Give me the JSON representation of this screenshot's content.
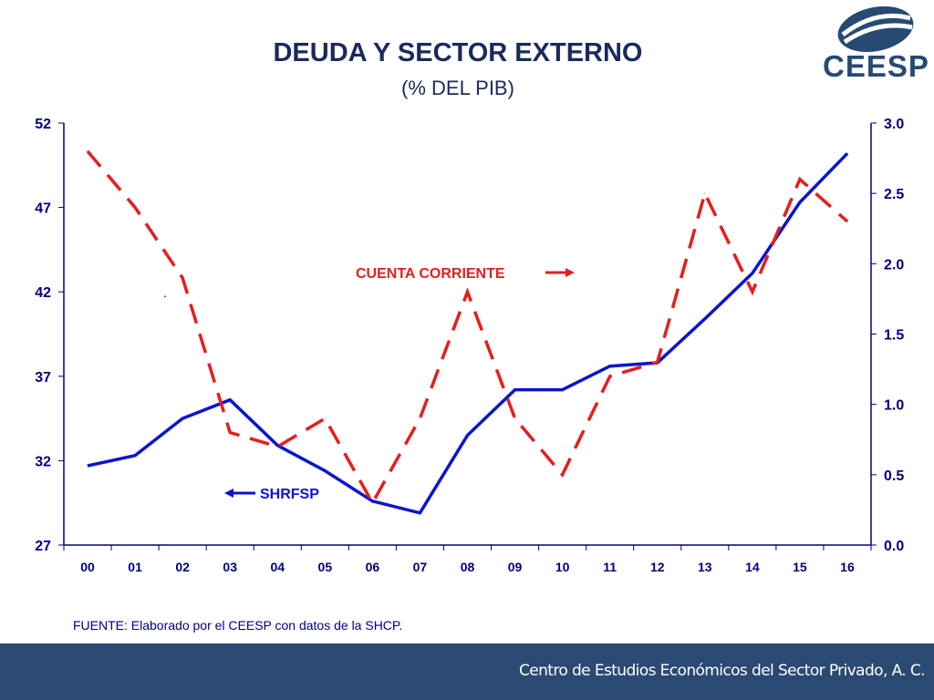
{
  "header": {
    "title": "DEUDA Y SECTOR EXTERNO",
    "subtitle": "(% DEL PIB)"
  },
  "logo": {
    "text": "CEESP",
    "color": "#274a72"
  },
  "chart_data": {
    "type": "line",
    "title": "DEUDA Y SECTOR EXTERNO",
    "subtitle": "(% DEL PIB)",
    "categories": [
      "00",
      "01",
      "02",
      "03",
      "04",
      "05",
      "06",
      "07",
      "08",
      "09",
      "10",
      "11",
      "12",
      "13",
      "14",
      "15",
      "16"
    ],
    "series": [
      {
        "name": "SHRFSP",
        "axis": "left",
        "color": "#0a14d0",
        "style": "solid",
        "values": [
          31.7,
          32.3,
          34.5,
          35.6,
          32.9,
          31.4,
          29.6,
          28.9,
          33.5,
          36.2,
          36.2,
          37.6,
          37.8,
          40.4,
          43.1,
          47.3,
          50.2
        ]
      },
      {
        "name": "CUENTA CORRIENTE",
        "axis": "right",
        "color": "#e41e1e",
        "style": "dashed",
        "values": [
          2.8,
          2.4,
          1.9,
          0.8,
          0.7,
          0.9,
          0.3,
          0.9,
          1.8,
          0.9,
          0.5,
          1.2,
          1.3,
          2.5,
          1.8,
          2.6,
          2.3
        ]
      }
    ],
    "yaxis_left": {
      "range": [
        27,
        52
      ],
      "ticks": [
        "27",
        "32",
        "37",
        "42",
        "47",
        "52"
      ]
    },
    "yaxis_right": {
      "range": [
        0,
        3
      ],
      "ticks": [
        "0.0",
        "0.5",
        "1.0",
        "1.5",
        "2.0",
        "2.5",
        "3.0"
      ]
    },
    "annotations": {
      "shrfsp_label": "SHRFSP",
      "cuenta_label": "CUENTA CORRIENTE",
      "dot": "."
    },
    "grid": false
  },
  "source_note": "FUENTE: Elaborado por el CEESP con datos de la SHCP.",
  "footer": {
    "text": "Centro de Estudios Económicos del Sector Privado, A. C.",
    "bg": "#2a4a73"
  }
}
